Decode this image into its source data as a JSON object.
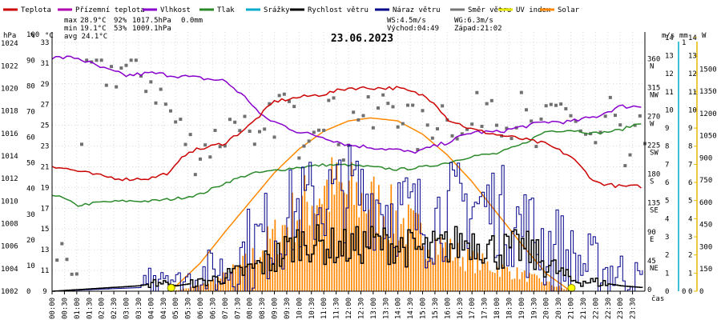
{
  "chart_data": {
    "type": "line",
    "title": "23.06.2023",
    "legend": [
      {
        "name": "Teplota",
        "color": "#cc0000"
      },
      {
        "name": "Přízemní teplota",
        "color": "#b000b0"
      },
      {
        "name": "Vlhkost",
        "color": "#8800cc"
      },
      {
        "name": "Tlak",
        "color": "#2a8a2a"
      },
      {
        "name": "Srážky",
        "color": "#00aacc"
      },
      {
        "name": "Rychlost větru",
        "color": "#000000"
      },
      {
        "name": "Náraz větru",
        "color": "#00008b"
      },
      {
        "name": "Směr větru",
        "color": "#777777"
      },
      {
        "name": "UV index",
        "color": "#e6e600"
      },
      {
        "name": "Solar",
        "color": "#ff8800"
      }
    ],
    "stats": {
      "max_label": "max",
      "max_temp": "28.9°C",
      "max_hum": "92%",
      "max_press": "1017.5hPa",
      "max_rain": "0.0mm",
      "min_label": "min",
      "min_temp": "19.1°C",
      "min_hum": "53%",
      "min_press": "1009.1hPa",
      "avg_label": "avg",
      "avg_temp": "24.1°C"
    },
    "info": {
      "ws": "WS:4.5m/s",
      "wg": "WG:6.3m/s",
      "sunrise": "Východ:04:49",
      "sunset": "Západ:21:02"
    },
    "axes": {
      "pressure_unit": "hPa",
      "pressure_ticks": [
        "1024",
        "1022",
        "1020",
        "1018",
        "1016",
        "1014",
        "1012",
        "1010",
        "1008",
        "1006",
        "1004",
        "1002"
      ],
      "humidity_unit": "%",
      "humidity_ticks": [
        "100",
        "90",
        "80",
        "70",
        "60",
        "50",
        "40",
        "30",
        "20",
        "10",
        "0"
      ],
      "temp_unit": "°C",
      "temp_ticks": [
        "33",
        "31",
        "29",
        "27",
        "25",
        "23",
        "21",
        "19",
        "17",
        "15",
        "13",
        "11",
        "9"
      ],
      "speed_unit": "m/s",
      "speed_ticks": [
        "14",
        "13",
        "12",
        "11",
        "10",
        "9",
        "8",
        "7",
        "6",
        "5",
        "4",
        "3",
        "2",
        "1",
        "0"
      ],
      "rain_unit": "mm",
      "rain_ticks": [
        "1",
        "0"
      ],
      "solar_unit": "W",
      "solar_ticks": [
        "1500",
        "1350",
        "1200",
        "1050",
        "900",
        "750",
        "600",
        "450",
        "300",
        "150",
        "0"
      ],
      "dir_ticks": [
        "360 N",
        "315 NW",
        "270 W",
        "225 SW",
        "180 S",
        "135 SE",
        "90 E",
        "45 NE",
        "0"
      ],
      "x_unit": "čas",
      "x_ticks": [
        "00:00",
        "00:30",
        "01:00",
        "01:30",
        "02:00",
        "02:30",
        "03:00",
        "03:30",
        "04:00",
        "04:30",
        "05:00",
        "05:30",
        "06:00",
        "06:30",
        "07:00",
        "07:30",
        "08:00",
        "08:30",
        "09:00",
        "09:30",
        "10:00",
        "10:30",
        "11:00",
        "11:30",
        "12:00",
        "12:30",
        "13:00",
        "13:30",
        "14:00",
        "14:30",
        "15:00",
        "15:30",
        "16:00",
        "16:30",
        "17:00",
        "17:30",
        "18:00",
        "18:30",
        "19:00",
        "19:30",
        "20:00",
        "20:30",
        "21:00",
        "21:30",
        "22:00",
        "22:30",
        "23:00",
        "23:30"
      ]
    },
    "series": {
      "temperature": {
        "hours": [
          0,
          1,
          2,
          3,
          4,
          4.8,
          5.5,
          6,
          7,
          8,
          9,
          10,
          11,
          12,
          13,
          14,
          15,
          15.5,
          16,
          17,
          18,
          19,
          20,
          21,
          22,
          23,
          23.9
        ],
        "values": [
          21.1,
          20.6,
          20.1,
          19.8,
          19.9,
          20.5,
          22.5,
          22.7,
          23.3,
          25.0,
          27.3,
          27.7,
          28.0,
          28.6,
          28.6,
          28.6,
          27.9,
          27.2,
          25.6,
          24.6,
          24.1,
          23.7,
          23.2,
          22.0,
          19.5,
          19.1,
          19.1
        ]
      },
      "humidity": {
        "hours": [
          0,
          1,
          2,
          3,
          4,
          5,
          6,
          7,
          8,
          8.5,
          9,
          10,
          11,
          12,
          13,
          14,
          14.5,
          15,
          16,
          17,
          18,
          19,
          20,
          21,
          22,
          23,
          23.9
        ],
        "values": [
          91,
          91,
          87,
          84,
          85,
          84,
          83,
          82,
          74,
          68,
          66,
          62,
          60,
          57,
          56,
          55,
          54,
          55,
          58,
          62,
          62,
          64,
          66,
          66,
          68,
          72,
          72
        ]
      },
      "pressure": {
        "hours": [
          0,
          0.5,
          1,
          2,
          3,
          4,
          5,
          6,
          7,
          8,
          9,
          10,
          11,
          12,
          13,
          14,
          15,
          16,
          17,
          18,
          19,
          20,
          21,
          22,
          23,
          23.9
        ],
        "values": [
          1010.6,
          1010.2,
          1009.6,
          1009.9,
          1010.0,
          1010.0,
          1010.2,
          1010.6,
          1011.6,
          1012.4,
          1012.7,
          1013.0,
          1013.2,
          1013.2,
          1013.0,
          1012.8,
          1013.0,
          1013.4,
          1014.0,
          1014.2,
          1015.0,
          1016.2,
          1016.3,
          1016.0,
          1016.3,
          1017.0
        ]
      },
      "wind_speed_ms": {
        "hours": [
          0,
          3.5,
          4.3,
          5,
          6,
          7,
          8,
          9,
          10,
          11,
          12,
          13,
          14,
          15,
          16,
          17,
          18,
          19,
          20,
          21,
          22,
          23,
          23.9
        ],
        "values": [
          0,
          0.3,
          0.5,
          0.3,
          0.5,
          0.8,
          1.2,
          1.8,
          2.8,
          2.5,
          2.4,
          2.7,
          2.5,
          2.2,
          2.5,
          2.8,
          2.2,
          2.4,
          1.5,
          0.6,
          0.5,
          0.3,
          0.2
        ]
      },
      "wind_gust_ms": {
        "hours": [
          0,
          3.5,
          4.4,
          5,
          6,
          7,
          8,
          9,
          10,
          11,
          12,
          13,
          14,
          15,
          16,
          17,
          18,
          19,
          20,
          21,
          22,
          23,
          23.9
        ],
        "values": [
          0,
          0.2,
          1.6,
          0.5,
          0.9,
          1.2,
          2.2,
          3.5,
          4.5,
          5.0,
          5.5,
          5.0,
          4.5,
          3.8,
          4.5,
          4.8,
          4.5,
          3.5,
          2.5,
          1.6,
          1.3,
          1.0,
          0.6
        ]
      },
      "solar_Wm2": {
        "hours": [
          4.8,
          6,
          7,
          8,
          9,
          10,
          11,
          12,
          13,
          14,
          15,
          16,
          17,
          18,
          19,
          20,
          21.0
        ],
        "values": [
          0,
          40,
          110,
          230,
          400,
          600,
          750,
          700,
          640,
          520,
          400,
          300,
          220,
          170,
          120,
          60,
          0
        ]
      },
      "solar_theoretical_Wm2": {
        "hours": [
          4.8,
          6,
          7,
          8,
          9,
          10,
          11,
          12,
          12.9,
          14,
          15,
          16,
          17,
          18,
          19,
          20,
          21.0
        ],
        "values": [
          0,
          190,
          400,
          600,
          800,
          960,
          1080,
          1150,
          1170,
          1150,
          1060,
          920,
          740,
          530,
          320,
          120,
          0
        ]
      },
      "wind_direction_deg": {
        "hours": [
          0.3,
          0.6,
          1.0,
          1.4,
          1.9,
          2.4,
          2.9,
          3.4,
          4.0,
          4.6,
          5.2,
          5.8,
          6.4,
          7.0,
          7.6,
          8.2,
          8.8,
          9.4,
          10.0,
          10.6,
          11.2,
          11.8,
          12.4,
          13.0,
          13.6,
          14.2,
          14.8,
          15.4,
          16.0,
          16.6,
          17.2,
          17.8,
          18.4,
          19.0,
          19.6,
          20.2,
          20.8,
          21.4,
          22.0,
          22.6,
          23.2,
          23.8
        ],
        "values": [
          60,
          55,
          40,
          350,
          345,
          340,
          350,
          340,
          330,
          290,
          250,
          215,
          230,
          245,
          280,
          200,
          260,
          300,
          240,
          275,
          290,
          230,
          285,
          260,
          300,
          280,
          245,
          265,
          290,
          235,
          275,
          310,
          260,
          280,
          230,
          270,
          295,
          250,
          220,
          275,
          200,
          240
        ]
      }
    },
    "markers": [
      {
        "label": "sunrise",
        "hour": 4.82
      },
      {
        "label": "sunset",
        "hour": 21.03
      }
    ]
  }
}
